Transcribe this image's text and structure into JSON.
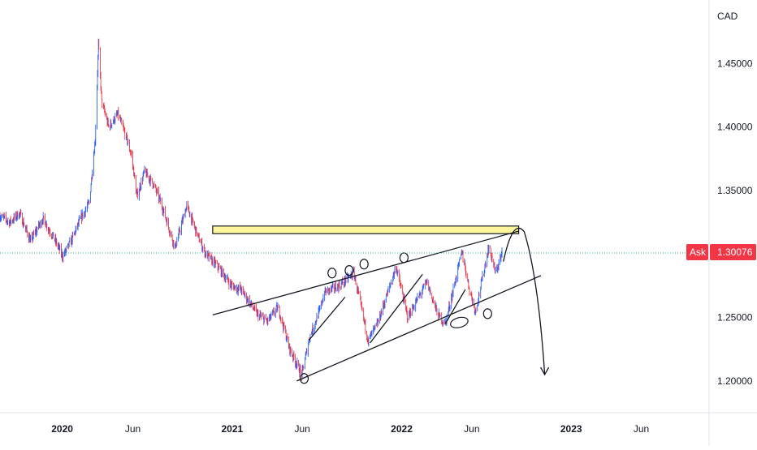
{
  "chart_data": {
    "type": "candlestick",
    "instrument_currency": "CAD",
    "colors": {
      "up": "#2962ff",
      "down": "#f23645",
      "price_line": "#26a69a",
      "badge": "#f23645",
      "annotation": "#131722",
      "highlight_fill": "#fff59d"
    },
    "y_axis": {
      "ticks": [
        {
          "value": 1.45,
          "label": "1.45000"
        },
        {
          "value": 1.4,
          "label": "1.40000"
        },
        {
          "value": 1.35,
          "label": "1.35000"
        },
        {
          "value": 1.25,
          "label": "1.25000"
        },
        {
          "value": 1.2,
          "label": "1.20000"
        }
      ],
      "range": [
        1.175,
        1.5
      ]
    },
    "x_axis": {
      "ticks": [
        {
          "date": "2020-01-01",
          "label": "2020",
          "bold": true
        },
        {
          "date": "2020-06-01",
          "label": "Jun",
          "bold": false
        },
        {
          "date": "2021-01-01",
          "label": "2021",
          "bold": true
        },
        {
          "date": "2021-06-01",
          "label": "Jun",
          "bold": false
        },
        {
          "date": "2022-01-01",
          "label": "2022",
          "bold": true
        },
        {
          "date": "2022-06-01",
          "label": "Jun",
          "bold": false
        },
        {
          "date": "2023-01-01",
          "label": "2023",
          "bold": true
        },
        {
          "date": "2023-06-01",
          "label": "Jun",
          "bold": false
        }
      ],
      "range": [
        "2019-08-20",
        "2023-10-25"
      ]
    },
    "current_price": {
      "label": "Ask",
      "value": 1.30076,
      "value_label": "1.30076"
    },
    "price_path": [
      [
        "2019-08-20",
        1.33
      ],
      [
        "2019-09-10",
        1.325
      ],
      [
        "2019-10-01",
        1.332
      ],
      [
        "2019-10-25",
        1.31
      ],
      [
        "2019-11-20",
        1.328
      ],
      [
        "2019-12-15",
        1.312
      ],
      [
        "2020-01-02",
        1.298
      ],
      [
        "2020-01-20",
        1.31
      ],
      [
        "2020-02-10",
        1.328
      ],
      [
        "2020-02-28",
        1.34
      ],
      [
        "2020-03-12",
        1.39
      ],
      [
        "2020-03-19",
        1.465
      ],
      [
        "2020-03-26",
        1.42
      ],
      [
        "2020-04-10",
        1.4
      ],
      [
        "2020-04-30",
        1.41
      ],
      [
        "2020-05-15",
        1.395
      ],
      [
        "2020-05-29",
        1.378
      ],
      [
        "2020-06-10",
        1.345
      ],
      [
        "2020-06-26",
        1.365
      ],
      [
        "2020-07-15",
        1.355
      ],
      [
        "2020-08-01",
        1.34
      ],
      [
        "2020-08-31",
        1.305
      ],
      [
        "2020-09-25",
        1.338
      ],
      [
        "2020-10-20",
        1.313
      ],
      [
        "2020-11-05",
        1.3
      ],
      [
        "2020-12-01",
        1.29
      ],
      [
        "2020-12-31",
        1.275
      ],
      [
        "2021-01-20",
        1.272
      ],
      [
        "2021-02-25",
        1.252
      ],
      [
        "2021-03-18",
        1.247
      ],
      [
        "2021-04-10",
        1.258
      ],
      [
        "2021-05-05",
        1.225
      ],
      [
        "2021-05-31",
        1.205
      ],
      [
        "2021-06-17",
        1.235
      ],
      [
        "2021-07-08",
        1.255
      ],
      [
        "2021-07-19",
        1.27
      ],
      [
        "2021-08-20",
        1.275
      ],
      [
        "2021-09-20",
        1.285
      ],
      [
        "2021-10-21",
        1.232
      ],
      [
        "2021-11-10",
        1.245
      ],
      [
        "2021-12-20",
        1.29
      ],
      [
        "2022-01-14",
        1.25
      ],
      [
        "2022-02-24",
        1.278
      ],
      [
        "2022-03-20",
        1.252
      ],
      [
        "2022-04-05",
        1.245
      ],
      [
        "2022-05-11",
        1.302
      ],
      [
        "2022-05-27",
        1.272
      ],
      [
        "2022-06-09",
        1.255
      ],
      [
        "2022-07-08",
        1.306
      ],
      [
        "2022-07-22",
        1.285
      ],
      [
        "2022-08-05",
        1.3
      ]
    ],
    "annotations": {
      "resistance_zone": {
        "start": "2020-11-20",
        "end": "2022-09-10",
        "top": 1.322,
        "bottom": 1.316
      },
      "lines": [
        {
          "from": [
            "2020-11-20",
            1.252
          ],
          "to": [
            "2022-09-10",
            1.318
          ]
        },
        {
          "from": [
            "2021-05-20",
            1.2
          ],
          "to": [
            "2022-10-28",
            1.283
          ]
        },
        {
          "from": [
            "2021-06-15",
            1.232
          ],
          "to": [
            "2021-09-01",
            1.266
          ]
        },
        {
          "from": [
            "2021-10-25",
            1.23
          ],
          "to": [
            "2022-02-15",
            1.284
          ]
        },
        {
          "from": [
            "2022-04-05",
            1.245
          ],
          "to": [
            "2022-05-18",
            1.272
          ]
        }
      ],
      "ellipses": [
        {
          "date": "2021-06-05",
          "price": 1.202
        },
        {
          "date": "2021-08-04",
          "price": 1.285
        },
        {
          "date": "2021-09-10",
          "price": 1.287
        },
        {
          "date": "2021-10-12",
          "price": 1.292
        },
        {
          "date": "2022-01-06",
          "price": 1.297
        },
        {
          "date": "2022-05-05",
          "price": 1.246
        },
        {
          "date": "2022-07-05",
          "price": 1.253
        }
      ],
      "forecast_arrow": {
        "start": [
          "2022-08-08",
          1.294
        ],
        "peak": [
          "2022-09-08",
          1.32
        ],
        "end": [
          "2022-11-05",
          1.205
        ]
      }
    }
  }
}
